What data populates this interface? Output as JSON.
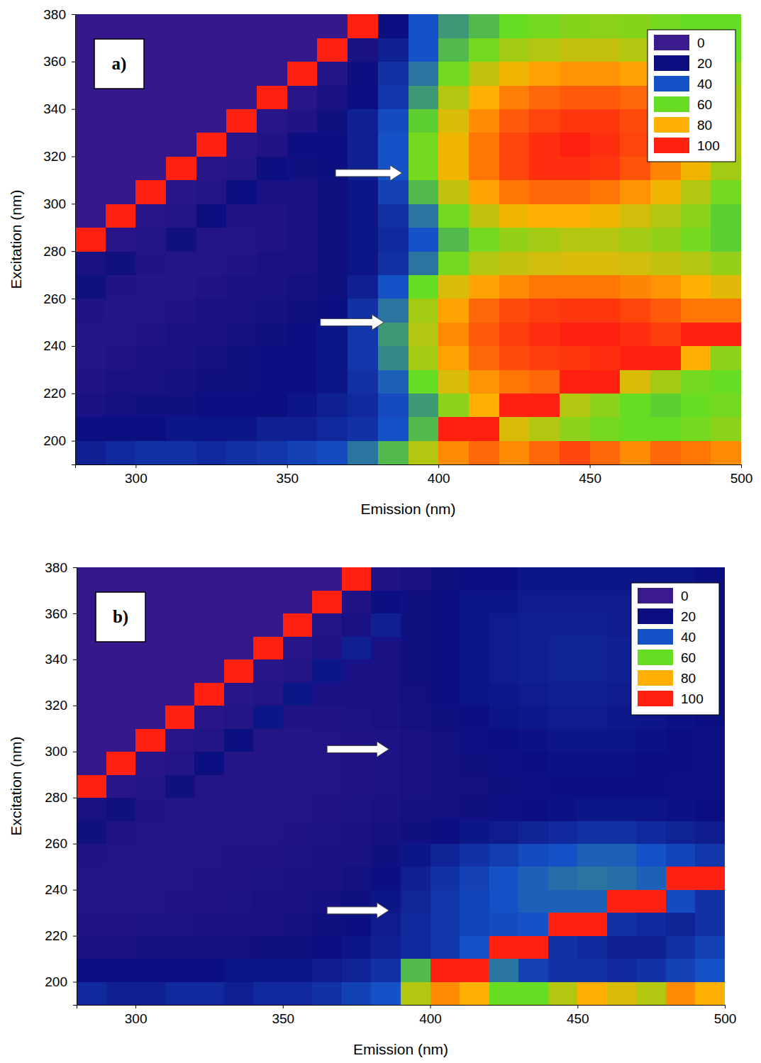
{
  "chart_data": [
    {
      "type": "heatmap",
      "panel_label": "a)",
      "xlabel": "Emission (nm)",
      "ylabel": "Excitation (nm)",
      "xlim": [
        280,
        500
      ],
      "ylim": [
        190,
        380
      ],
      "xticks": [
        300,
        350,
        400,
        450,
        500
      ],
      "yticks": [
        200,
        220,
        240,
        260,
        280,
        300,
        320,
        340,
        360,
        380
      ],
      "legend": "upper right",
      "colorbar": {
        "ticks": [
          0,
          20,
          40,
          60,
          80,
          100
        ],
        "colors": [
          "#3b1a8e",
          "#0c0f80",
          "#1552c8",
          "#66dd22",
          "#ffb000",
          "#ff2010"
        ]
      },
      "x": [
        285,
        295,
        305,
        315,
        325,
        335,
        345,
        355,
        365,
        375,
        385,
        395,
        405,
        415,
        425,
        435,
        445,
        455,
        465,
        475,
        485,
        495
      ],
      "y": [
        195,
        205,
        215,
        225,
        235,
        245,
        255,
        265,
        275,
        285,
        295,
        305,
        315,
        325,
        335,
        345,
        355,
        365,
        375
      ],
      "z": [
        [
          25,
          28,
          30,
          30,
          28,
          30,
          32,
          35,
          38,
          45,
          55,
          70,
          85,
          90,
          85,
          90,
          95,
          90,
          85,
          90,
          88,
          85
        ],
        [
          20,
          20,
          20,
          22,
          22,
          22,
          25,
          25,
          28,
          30,
          40,
          55,
          100,
          100,
          75,
          70,
          65,
          62,
          60,
          60,
          62,
          65
        ],
        [
          15,
          16,
          18,
          18,
          20,
          20,
          20,
          22,
          25,
          28,
          38,
          50,
          65,
          80,
          100,
          100,
          70,
          65,
          60,
          58,
          60,
          62
        ],
        [
          12,
          14,
          15,
          16,
          18,
          18,
          20,
          20,
          22,
          30,
          42,
          60,
          75,
          84,
          88,
          90,
          100,
          100,
          75,
          68,
          62,
          60
        ],
        [
          10,
          12,
          14,
          15,
          16,
          18,
          20,
          20,
          22,
          32,
          48,
          68,
          82,
          90,
          94,
          96,
          97,
          98,
          100,
          100,
          80,
          65
        ],
        [
          10,
          10,
          12,
          14,
          15,
          16,
          18,
          20,
          22,
          32,
          50,
          70,
          85,
          92,
          96,
          98,
          100,
          100,
          98,
          96,
          100,
          100
        ],
        [
          12,
          10,
          10,
          12,
          14,
          15,
          16,
          18,
          20,
          30,
          45,
          68,
          82,
          90,
          94,
          96,
          97,
          97,
          95,
          92,
          88,
          88
        ],
        [
          18,
          12,
          10,
          10,
          12,
          14,
          15,
          16,
          18,
          25,
          40,
          60,
          75,
          82,
          85,
          88,
          88,
          88,
          86,
          84,
          80,
          76
        ],
        [
          15,
          18,
          12,
          10,
          10,
          12,
          14,
          15,
          18,
          22,
          30,
          45,
          62,
          70,
          72,
          74,
          75,
          75,
          74,
          72,
          70,
          66
        ],
        [
          100,
          8,
          10,
          18,
          10,
          10,
          12,
          15,
          18,
          22,
          28,
          40,
          55,
          62,
          66,
          68,
          70,
          70,
          68,
          66,
          62,
          58
        ],
        [
          3,
          100,
          8,
          10,
          20,
          12,
          12,
          15,
          18,
          22,
          30,
          45,
          62,
          72,
          78,
          80,
          80,
          78,
          74,
          70,
          65,
          58
        ],
        [
          3,
          3,
          100,
          8,
          10,
          20,
          15,
          15,
          18,
          22,
          35,
          55,
          72,
          82,
          88,
          90,
          90,
          88,
          84,
          78,
          70,
          62
        ],
        [
          3,
          3,
          3,
          100,
          8,
          10,
          20,
          18,
          20,
          25,
          40,
          62,
          78,
          88,
          95,
          98,
          98,
          97,
          93,
          86,
          78,
          68
        ],
        [
          3,
          3,
          3,
          3,
          100,
          8,
          12,
          20,
          20,
          25,
          40,
          62,
          78,
          88,
          95,
          98,
          100,
          98,
          95,
          88,
          80,
          70
        ],
        [
          3,
          3,
          3,
          3,
          3,
          100,
          8,
          12,
          18,
          25,
          38,
          58,
          75,
          85,
          92,
          95,
          97,
          97,
          94,
          88,
          80,
          70
        ],
        [
          3,
          3,
          3,
          3,
          3,
          3,
          100,
          8,
          15,
          20,
          32,
          50,
          70,
          80,
          87,
          90,
          92,
          92,
          90,
          85,
          78,
          68
        ],
        [
          3,
          3,
          3,
          3,
          3,
          3,
          3,
          100,
          10,
          20,
          30,
          45,
          62,
          72,
          78,
          82,
          84,
          84,
          82,
          78,
          72,
          65
        ],
        [
          3,
          3,
          3,
          3,
          3,
          3,
          3,
          3,
          100,
          15,
          25,
          40,
          55,
          62,
          68,
          70,
          72,
          72,
          70,
          68,
          65,
          60
        ],
        [
          3,
          3,
          3,
          3,
          3,
          3,
          3,
          3,
          3,
          100,
          20,
          40,
          50,
          55,
          60,
          62,
          64,
          65,
          64,
          62,
          60,
          60
        ]
      ],
      "arrows": [
        {
          "x": [
            366,
            388
          ],
          "y": 313
        },
        {
          "x": [
            361,
            382
          ],
          "y": 250
        }
      ]
    },
    {
      "type": "heatmap",
      "panel_label": "b)",
      "xlabel": "Emission (nm)",
      "ylabel": "Excitation (nm)",
      "xlim": [
        280,
        500
      ],
      "ylim": [
        190,
        380
      ],
      "xticks": [
        300,
        350,
        400,
        450,
        500
      ],
      "yticks": [
        200,
        220,
        240,
        260,
        280,
        300,
        320,
        340,
        360,
        380
      ],
      "legend": "upper right",
      "colorbar": {
        "ticks": [
          0,
          20,
          40,
          60,
          80,
          100
        ],
        "colors": [
          "#3b1a8e",
          "#0c0f80",
          "#1552c8",
          "#66dd22",
          "#ffb000",
          "#ff2010"
        ]
      },
      "x": [
        285,
        295,
        305,
        315,
        325,
        335,
        345,
        355,
        365,
        375,
        385,
        395,
        405,
        415,
        425,
        435,
        445,
        455,
        465,
        475,
        485,
        495
      ],
      "y": [
        195,
        205,
        215,
        225,
        235,
        245,
        255,
        265,
        275,
        285,
        295,
        305,
        315,
        325,
        335,
        345,
        355,
        365,
        375
      ],
      "z": [
        [
          28,
          25,
          25,
          28,
          28,
          25,
          28,
          28,
          30,
          35,
          40,
          70,
          85,
          80,
          60,
          60,
          70,
          80,
          75,
          70,
          85,
          80
        ],
        [
          20,
          20,
          20,
          20,
          20,
          22,
          22,
          22,
          24,
          26,
          30,
          55,
          100,
          100,
          45,
          35,
          30,
          30,
          28,
          30,
          35,
          40
        ],
        [
          15,
          15,
          16,
          16,
          17,
          17,
          18,
          18,
          20,
          22,
          25,
          28,
          32,
          40,
          100,
          100,
          30,
          28,
          25,
          25,
          30,
          35
        ],
        [
          12,
          12,
          13,
          13,
          14,
          14,
          15,
          16,
          18,
          20,
          24,
          28,
          32,
          36,
          38,
          40,
          100,
          100,
          30,
          28,
          26,
          30
        ],
        [
          10,
          10,
          11,
          12,
          12,
          13,
          14,
          15,
          16,
          18,
          22,
          27,
          32,
          36,
          40,
          42,
          42,
          42,
          100,
          100,
          38,
          30
        ],
        [
          10,
          10,
          10,
          11,
          12,
          12,
          13,
          14,
          15,
          17,
          20,
          25,
          30,
          35,
          40,
          42,
          44,
          45,
          44,
          42,
          100,
          100
        ],
        [
          12,
          10,
          10,
          10,
          11,
          12,
          12,
          13,
          14,
          15,
          18,
          22,
          26,
          30,
          34,
          38,
          40,
          42,
          42,
          40,
          36,
          32
        ],
        [
          18,
          12,
          10,
          10,
          10,
          11,
          11,
          12,
          13,
          14,
          16,
          18,
          20,
          22,
          24,
          26,
          28,
          30,
          30,
          28,
          26,
          24
        ],
        [
          15,
          18,
          12,
          10,
          10,
          10,
          10,
          11,
          12,
          13,
          14,
          16,
          17,
          18,
          19,
          20,
          21,
          22,
          22,
          22,
          21,
          20
        ],
        [
          100,
          8,
          10,
          18,
          10,
          10,
          10,
          10,
          11,
          12,
          13,
          15,
          16,
          17,
          18,
          19,
          20,
          20,
          20,
          20,
          19,
          19
        ],
        [
          3,
          100,
          8,
          10,
          20,
          10,
          10,
          10,
          11,
          12,
          13,
          15,
          17,
          18,
          19,
          20,
          21,
          21,
          21,
          20,
          20,
          19
        ],
        [
          3,
          3,
          100,
          8,
          10,
          20,
          10,
          10,
          11,
          12,
          13,
          15,
          17,
          19,
          20,
          21,
          22,
          22,
          22,
          21,
          20,
          19
        ],
        [
          3,
          3,
          3,
          100,
          8,
          10,
          22,
          12,
          12,
          13,
          14,
          16,
          18,
          20,
          22,
          23,
          24,
          24,
          23,
          22,
          21,
          20
        ],
        [
          3,
          3,
          3,
          3,
          100,
          8,
          10,
          22,
          14,
          14,
          15,
          17,
          20,
          22,
          23,
          24,
          25,
          25,
          24,
          23,
          22,
          20
        ],
        [
          3,
          3,
          3,
          3,
          3,
          100,
          8,
          10,
          22,
          15,
          15,
          18,
          20,
          22,
          24,
          25,
          26,
          26,
          25,
          24,
          22,
          20
        ],
        [
          3,
          3,
          3,
          3,
          3,
          3,
          100,
          8,
          12,
          25,
          15,
          18,
          20,
          22,
          24,
          25,
          26,
          26,
          25,
          24,
          22,
          20
        ],
        [
          3,
          3,
          3,
          3,
          3,
          3,
          3,
          100,
          10,
          15,
          25,
          18,
          20,
          22,
          24,
          25,
          25,
          25,
          24,
          22,
          22,
          20
        ],
        [
          3,
          3,
          3,
          3,
          3,
          3,
          3,
          3,
          100,
          12,
          20,
          18,
          20,
          22,
          22,
          24,
          24,
          24,
          24,
          22,
          22,
          20
        ],
        [
          3,
          3,
          3,
          3,
          3,
          3,
          3,
          3,
          3,
          100,
          12,
          15,
          18,
          20,
          20,
          22,
          22,
          22,
          22,
          22,
          22,
          20
        ]
      ],
      "arrows": [
        {
          "x": [
            365,
            386
          ],
          "y": 301
        },
        {
          "x": [
            365,
            386
          ],
          "y": 231
        }
      ]
    }
  ]
}
